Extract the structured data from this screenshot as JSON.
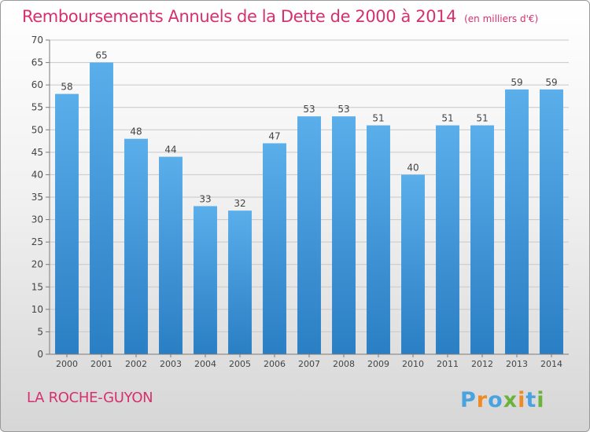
{
  "title": "Remboursements Annuels de la Dette de 2000 à 2014",
  "unit": "(en milliers d'€)",
  "commune": "LA ROCHE-GUYON",
  "brand": "Proxiti",
  "colors": {
    "title": "#d6306f",
    "bar_light": "#5aaeea",
    "bar_dark": "#2a7ec3",
    "axis": "#7a7a7a",
    "grid": "#c8c8c8"
  },
  "chart_data": {
    "type": "bar",
    "title": "Remboursements Annuels de la Dette de 2000 à 2014",
    "xlabel": "",
    "ylabel": "",
    "ylim": [
      0,
      70
    ],
    "ytick_step": 5,
    "yticks": [
      "0",
      "5",
      "10",
      "15",
      "20",
      "25",
      "30",
      "35",
      "40",
      "45",
      "50",
      "55",
      "60",
      "65",
      "70"
    ],
    "categories": [
      "2000",
      "2001",
      "2002",
      "2003",
      "2004",
      "2005",
      "2006",
      "2007",
      "2008",
      "2009",
      "2010",
      "2011",
      "2012",
      "2013",
      "2014"
    ],
    "values": [
      58,
      65,
      48,
      44,
      33,
      32,
      47,
      53,
      53,
      51,
      40,
      51,
      51,
      59,
      59
    ],
    "data_labels": [
      "58",
      "65",
      "48",
      "44",
      "33",
      "32",
      "47",
      "53",
      "53",
      "51",
      "40",
      "51",
      "51",
      "59",
      "59"
    ]
  }
}
